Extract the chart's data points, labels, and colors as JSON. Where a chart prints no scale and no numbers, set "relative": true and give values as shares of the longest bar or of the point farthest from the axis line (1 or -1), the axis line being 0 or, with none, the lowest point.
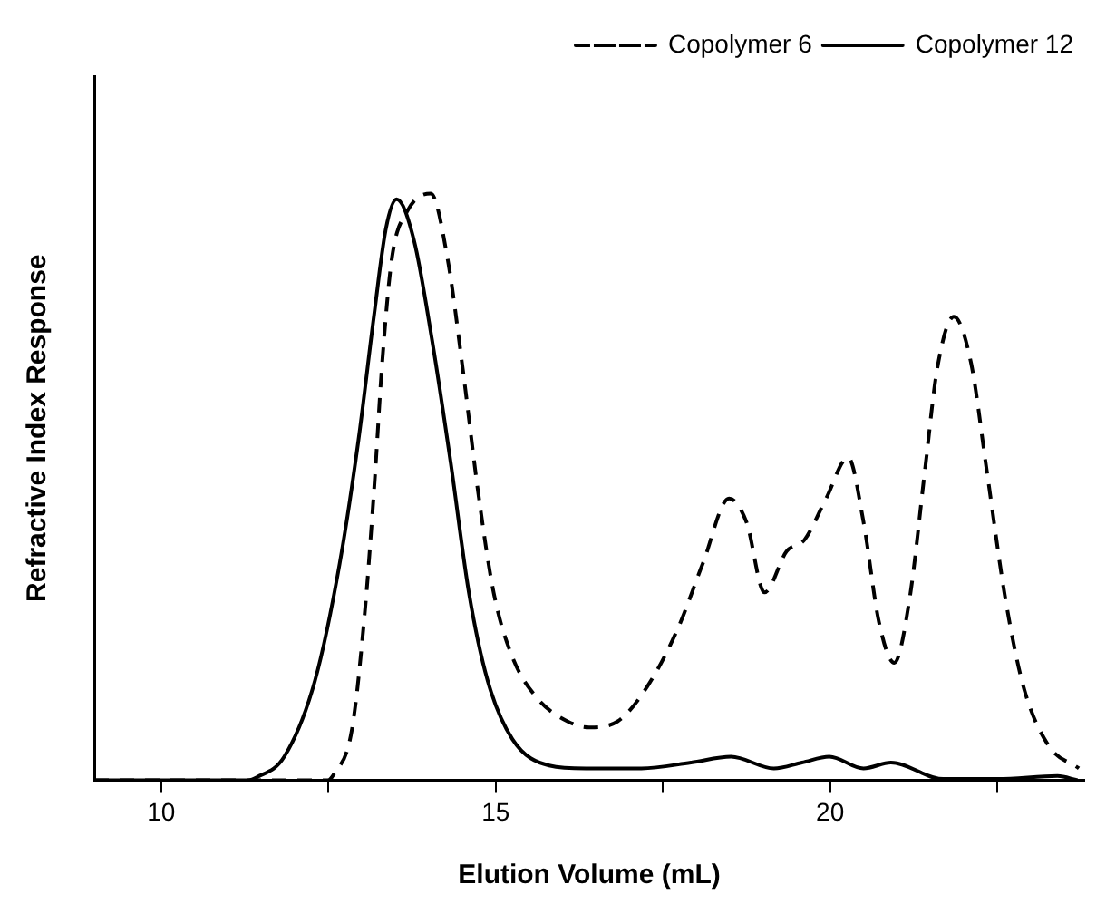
{
  "chart_data": {
    "type": "line",
    "relative": true,
    "xlabel": "Elution Volume (mL)",
    "ylabel": "Refractive Index Response",
    "xlim": [
      9,
      23.8
    ],
    "xticks": [
      10,
      {
        "value": 12.5,
        "label": null
      },
      15,
      {
        "value": 17.5,
        "label": null
      },
      20,
      {
        "value": 22.5,
        "label": null
      }
    ],
    "legend": "top right",
    "grid": false,
    "marker": "none",
    "series": [
      {
        "name": "Copolymer 6",
        "color": "#000000",
        "line_style": "dashed",
        "x": [
          9,
          12.49,
          12.58,
          12.85,
          13.04,
          13.18,
          13.31,
          13.45,
          13.68,
          14.03,
          14.28,
          14.51,
          14.74,
          14.97,
          15.25,
          15.62,
          16.08,
          16.4,
          16.82,
          17.27,
          17.73,
          18.1,
          18.49,
          18.75,
          19.02,
          19.35,
          19.62,
          19.94,
          20.27,
          20.5,
          20.73,
          20.96,
          21.19,
          21.42,
          21.6,
          21.85,
          22.11,
          22.34,
          22.62,
          22.89,
          23.26,
          23.72
        ],
        "values": [
          0,
          0,
          0.01,
          0.085,
          0.28,
          0.49,
          0.72,
          0.89,
          0.97,
          1,
          0.89,
          0.7,
          0.49,
          0.32,
          0.21,
          0.14,
          0.1,
          0.09,
          0.1,
          0.16,
          0.26,
          0.37,
          0.48,
          0.44,
          0.32,
          0.39,
          0.41,
          0.48,
          0.55,
          0.44,
          0.27,
          0.2,
          0.31,
          0.53,
          0.7,
          0.79,
          0.71,
          0.53,
          0.31,
          0.16,
          0.06,
          0.02
        ]
      },
      {
        "name": "Copolymer 12",
        "color": "#000000",
        "line_style": "solid",
        "x": [
          9,
          11.3,
          11.43,
          11.84,
          12.3,
          12.67,
          12.95,
          13.18,
          13.36,
          13.52,
          13.78,
          14.05,
          14.33,
          14.6,
          14.88,
          15.25,
          15.8,
          16.35,
          17.18,
          17.92,
          18.52,
          19.16,
          19.58,
          19.99,
          20.5,
          20.91,
          21.69,
          22.51,
          23.4,
          23.7
        ],
        "values": [
          0,
          0,
          0.005,
          0.04,
          0.17,
          0.37,
          0.58,
          0.79,
          0.94,
          0.99,
          0.92,
          0.75,
          0.54,
          0.32,
          0.17,
          0.07,
          0.025,
          0.02,
          0.02,
          0.03,
          0.04,
          0.02,
          0.03,
          0.04,
          0.02,
          0.03,
          0.002,
          0.002,
          0.007,
          0
        ]
      }
    ]
  }
}
